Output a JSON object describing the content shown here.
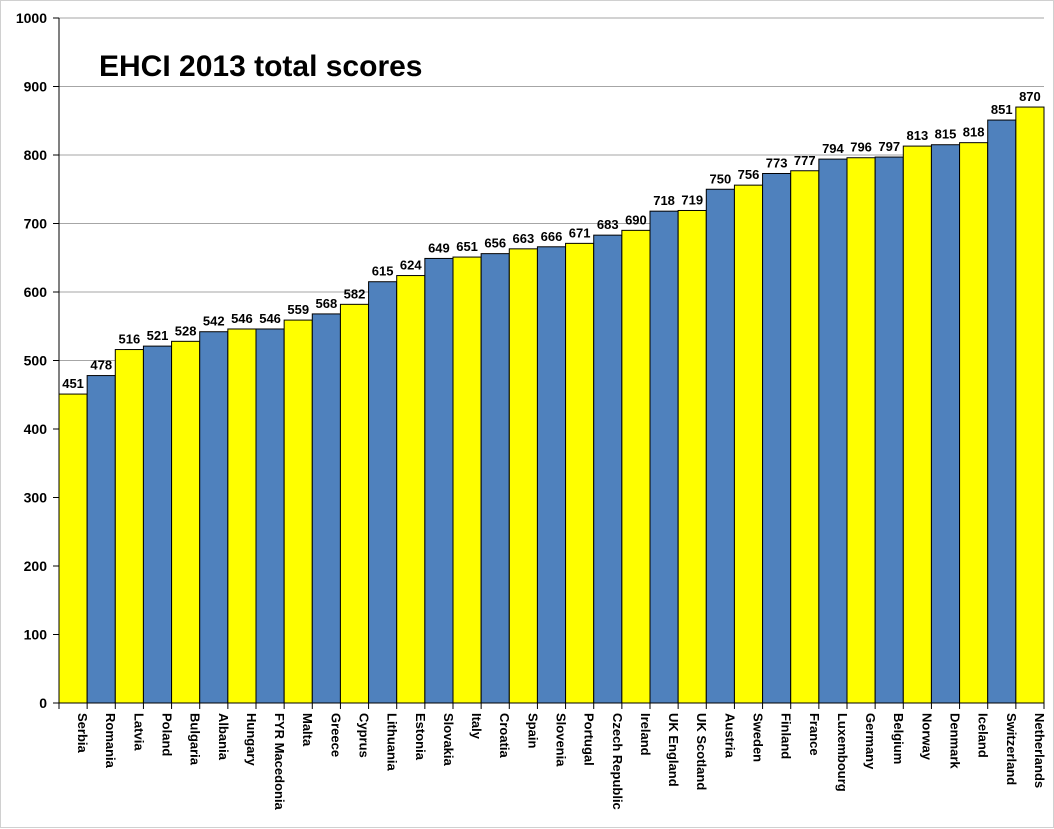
{
  "chart_data": {
    "type": "bar",
    "title": "EHCI 2013 total scores",
    "xlabel": "",
    "ylabel": "",
    "ylim": [
      0,
      1000
    ],
    "yticks": [
      0,
      100,
      200,
      300,
      400,
      500,
      600,
      700,
      800,
      900,
      1000
    ],
    "grid": true,
    "legend": "none",
    "colors": {
      "yellow": "#ffff00",
      "blue": "#4f81bd",
      "edge": "#000000",
      "grid": "#a6a6a6"
    },
    "categories": [
      "Serbia",
      "Romania",
      "Latvia",
      "Poland",
      "Bulgaria",
      "Albania",
      "Hungary",
      "FYR Macedonia",
      "Malta",
      "Greece",
      "Cyprus",
      "Lithuania",
      "Estonia",
      "Slovakia",
      "Italy",
      "Croatia",
      "Spain",
      "Slovenia",
      "Portugal",
      "Czech Republic",
      "Ireland",
      "UK England",
      "UK Scotland",
      "Austria",
      "Sweden",
      "Finland",
      "France",
      "Luxembourg",
      "Germany",
      "Belgium",
      "Norway",
      "Denmark",
      "Iceland",
      "Switzerland",
      "Netherlands"
    ],
    "values": [
      451,
      478,
      516,
      521,
      528,
      542,
      546,
      546,
      559,
      568,
      582,
      615,
      624,
      649,
      651,
      656,
      663,
      666,
      671,
      683,
      690,
      718,
      719,
      750,
      756,
      773,
      777,
      794,
      796,
      797,
      813,
      815,
      818,
      851,
      870
    ],
    "bar_colors": [
      "yellow",
      "blue",
      "yellow",
      "blue",
      "yellow",
      "blue",
      "yellow",
      "blue",
      "yellow",
      "blue",
      "yellow",
      "blue",
      "yellow",
      "blue",
      "yellow",
      "blue",
      "yellow",
      "blue",
      "yellow",
      "blue",
      "yellow",
      "blue",
      "yellow",
      "blue",
      "yellow",
      "blue",
      "yellow",
      "blue",
      "yellow",
      "blue",
      "yellow",
      "blue",
      "yellow",
      "blue",
      "yellow"
    ]
  }
}
